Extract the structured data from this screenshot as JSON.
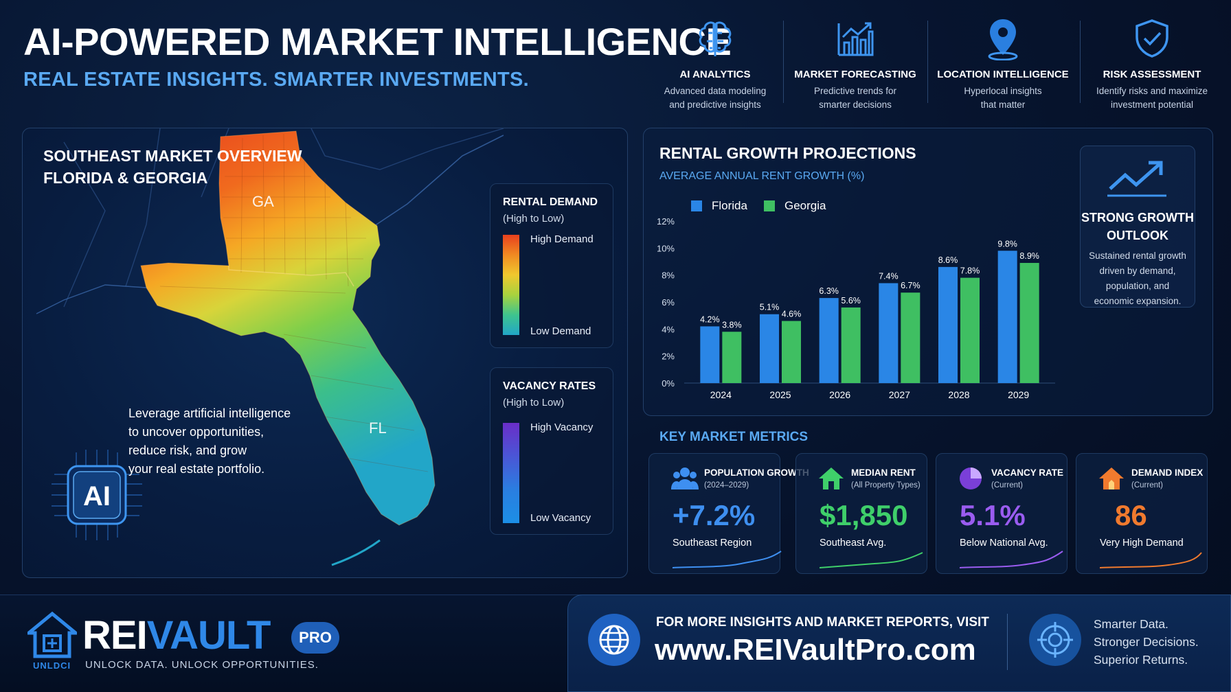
{
  "header": {
    "title": "AI-POWERED MARKET INTELLIGENCE",
    "subtitle": "REAL ESTATE INSIGHTS. SMARTER INVESTMENTS.",
    "features": [
      {
        "icon": "brain-icon",
        "title": "AI ANALYTICS",
        "line1": "Advanced data modeling",
        "line2": "and predictive insights"
      },
      {
        "icon": "bar-chart-icon",
        "title": "MARKET FORECASTING",
        "line1": "Predictive trends for",
        "line2": "smarter decisions"
      },
      {
        "icon": "location-pin-icon",
        "title": "LOCATION INTELLIGENCE",
        "line1": "Hyperlocal insights",
        "line2": "that matter"
      },
      {
        "icon": "shield-check-icon",
        "title": "RISK ASSESSMENT",
        "line1": "Identify risks and maximize",
        "line2": "investment potential"
      }
    ]
  },
  "map": {
    "title_line1": "SOUTHEAST MARKET OVERVIEW",
    "title_line2": "FLORIDA & GEORGIA",
    "label_ga": "GA",
    "label_fl": "FL",
    "rental_demand": {
      "title": "RENTAL DEMAND",
      "sub": "(High to Low)",
      "high": "High Demand",
      "low": "Low Demand"
    },
    "vacancy": {
      "title": "VACANCY RATES",
      "sub": "(High to Low)",
      "high": "High Vacancy",
      "low": "Low Vacancy"
    },
    "ai_badge": "AI",
    "ai_lines": [
      "Leverage artificial intelligence",
      "to uncover opportunities,",
      "reduce risk, and grow",
      "your real estate portfolio."
    ]
  },
  "chart_data": {
    "type": "bar",
    "title": "RENTAL GROWTH PROJECTIONS",
    "subtitle": "AVERAGE ANNUAL RENT GROWTH (%)",
    "categories": [
      "2024",
      "2025",
      "2026",
      "2027",
      "2028",
      "2029"
    ],
    "series": [
      {
        "name": "Florida",
        "values": [
          4.2,
          5.1,
          6.3,
          7.4,
          8.6,
          9.8
        ],
        "labels": [
          "4.2%",
          "5.1%",
          "6.3%",
          "7.4%",
          "8.6%",
          "9.8%"
        ],
        "color": "#2a86e6"
      },
      {
        "name": "Georgia",
        "values": [
          3.8,
          4.6,
          5.6,
          6.7,
          7.8,
          8.9
        ],
        "labels": [
          "3.8%",
          "4.6%",
          "5.6%",
          "6.7%",
          "7.8%",
          "8.9%"
        ],
        "color": "#3fbf62"
      }
    ],
    "ylim": [
      0,
      12
    ],
    "yticks": [
      "0%",
      "2%",
      "4%",
      "6%",
      "8%",
      "10%",
      "12%"
    ],
    "legend": "top-left",
    "grid": false
  },
  "outlook": {
    "icon": "trend-up-icon",
    "title_line1": "STRONG GROWTH",
    "title_line2": "OUTLOOK",
    "lines": [
      "Sustained rental growth",
      "driven by demand,",
      "population, and",
      "economic expansion."
    ]
  },
  "metrics": {
    "title": "KEY MARKET METRICS",
    "cards": [
      {
        "icon": "people-icon",
        "label": "POPULATION GROWTH",
        "sub": "(2024–2029)",
        "value": "+7.2%",
        "note": "Southeast Region",
        "color": "#3e8ff0"
      },
      {
        "icon": "house-icon",
        "label": "MEDIAN RENT",
        "sub": "(All Property Types)",
        "value": "$1,850",
        "note": "Southeast Avg.",
        "color": "#3fcf6a"
      },
      {
        "icon": "pie-chart-icon",
        "label": "VACANCY RATE",
        "sub": "(Current)",
        "value": "5.1%",
        "note": "Below National Avg.",
        "color": "#9a5cf0"
      },
      {
        "icon": "demand-house-icon",
        "label": "DEMAND INDEX",
        "sub": "(Current)",
        "value": "86",
        "note": "Very High Demand",
        "color": "#f07a2e"
      }
    ]
  },
  "footer": {
    "brand_rei": "REI",
    "brand_vault": "VAULT",
    "pro": "PRO",
    "unld": "UNLDCI",
    "tagline": "UNLOCK DATA. UNLOCK OPPORTUNITIES.",
    "cta_top": "FOR MORE INSIGHTS AND MARKET REPORTS, VISIT",
    "url": "www.REIVaultPro.com",
    "slogan": [
      "Smarter Data.",
      "Stronger Decisions.",
      "Superior Returns."
    ]
  }
}
